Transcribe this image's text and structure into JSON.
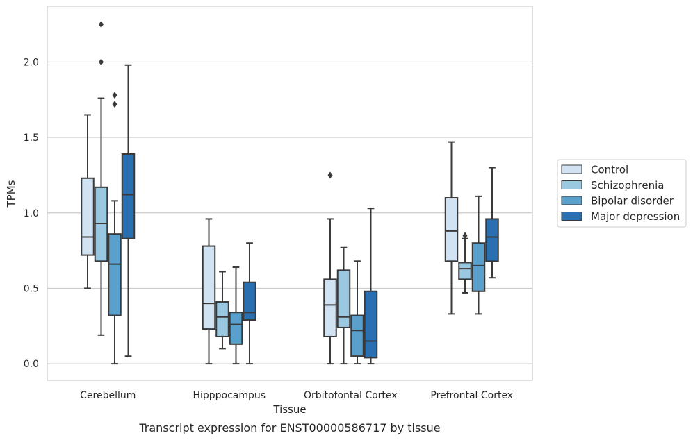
{
  "chart_data": {
    "type": "box",
    "caption": "Transcript expression for ENST00000586717 by tissue",
    "xlabel": "Tissue",
    "ylabel": "TPMs",
    "ylim": [
      -0.11,
      2.37
    ],
    "yticks": [
      0.0,
      0.5,
      1.0,
      1.5,
      2.0
    ],
    "ytick_labels": [
      "0.0",
      "0.5",
      "1.0",
      "1.5",
      "2.0"
    ],
    "grid": "horizontal",
    "legend_position": "right",
    "categories": [
      "Cerebellum",
      "Hipppocampus",
      "Orbitofontal Cortex",
      "Prefrontal Cortex"
    ],
    "series": [
      {
        "name": "Control",
        "color": "#d1e2f2",
        "boxes": [
          {
            "whislo": 0.5,
            "q1": 0.72,
            "med": 0.84,
            "q3": 1.23,
            "whishi": 1.65,
            "fliers": []
          },
          {
            "whislo": 0.0,
            "q1": 0.23,
            "med": 0.4,
            "q3": 0.78,
            "whishi": 0.96,
            "fliers": []
          },
          {
            "whislo": 0.0,
            "q1": 0.18,
            "med": 0.39,
            "q3": 0.56,
            "whishi": 0.96,
            "fliers": [
              1.25
            ]
          },
          {
            "whislo": 0.33,
            "q1": 0.68,
            "med": 0.88,
            "q3": 1.1,
            "whishi": 1.47,
            "fliers": []
          }
        ]
      },
      {
        "name": "Schizophrenia",
        "color": "#9ac8e0",
        "boxes": [
          {
            "whislo": 0.19,
            "q1": 0.68,
            "med": 0.93,
            "q3": 1.17,
            "whishi": 1.76,
            "fliers": [
              2.0,
              2.25
            ]
          },
          {
            "whislo": 0.1,
            "q1": 0.18,
            "med": 0.31,
            "q3": 0.41,
            "whishi": 0.61,
            "fliers": []
          },
          {
            "whislo": 0.0,
            "q1": 0.24,
            "med": 0.31,
            "q3": 0.62,
            "whishi": 0.77,
            "fliers": []
          },
          {
            "whislo": 0.47,
            "q1": 0.56,
            "med": 0.63,
            "q3": 0.67,
            "whishi": 0.83,
            "fliers": [
              0.85
            ]
          }
        ]
      },
      {
        "name": "Bipolar disorder",
        "color": "#5aa0cd",
        "boxes": [
          {
            "whislo": 0.0,
            "q1": 0.32,
            "med": 0.66,
            "q3": 0.86,
            "whishi": 1.08,
            "fliers": [
              1.72,
              1.78
            ]
          },
          {
            "whislo": 0.0,
            "q1": 0.13,
            "med": 0.26,
            "q3": 0.34,
            "whishi": 0.64,
            "fliers": []
          },
          {
            "whislo": 0.0,
            "q1": 0.05,
            "med": 0.22,
            "q3": 0.32,
            "whishi": 0.68,
            "fliers": []
          },
          {
            "whislo": 0.33,
            "q1": 0.48,
            "med": 0.65,
            "q3": 0.8,
            "whishi": 1.11,
            "fliers": []
          }
        ]
      },
      {
        "name": "Major depression",
        "color": "#2a6fb0",
        "boxes": [
          {
            "whislo": 0.05,
            "q1": 0.83,
            "med": 1.12,
            "q3": 1.39,
            "whishi": 1.98,
            "fliers": []
          },
          {
            "whislo": 0.0,
            "q1": 0.29,
            "med": 0.34,
            "q3": 0.54,
            "whishi": 0.8,
            "fliers": []
          },
          {
            "whislo": 0.0,
            "q1": 0.04,
            "med": 0.15,
            "q3": 0.48,
            "whishi": 1.03,
            "fliers": []
          },
          {
            "whislo": 0.57,
            "q1": 0.68,
            "med": 0.84,
            "q3": 0.96,
            "whishi": 1.3,
            "fliers": []
          }
        ]
      }
    ]
  }
}
